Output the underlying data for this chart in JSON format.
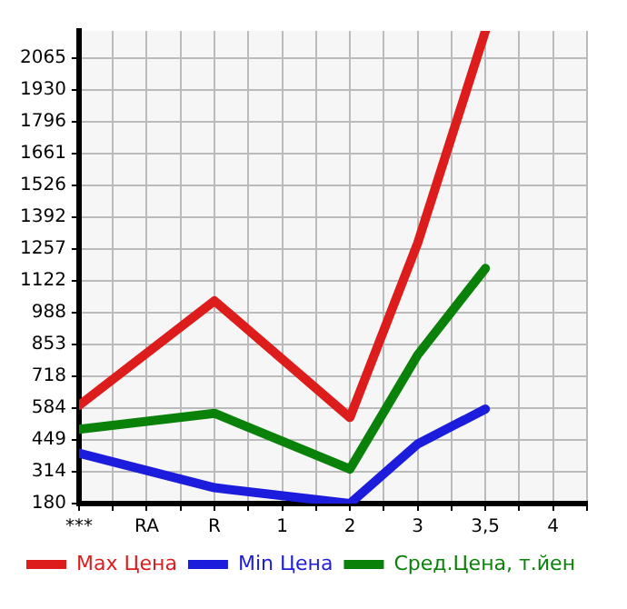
{
  "chart_data": {
    "type": "line",
    "categories": [
      "***",
      "RA",
      "R",
      "1",
      "2",
      "3",
      "3,5",
      "4"
    ],
    "series": [
      {
        "name": "Max Цена",
        "color": "#dd1c1c",
        "values": [
          595,
          null,
          1038,
          null,
          544,
          1282,
          2180,
          null
        ]
      },
      {
        "name": "Min Цена",
        "color": "#1c1cdd",
        "values": [
          393,
          null,
          247,
          null,
          180,
          432,
          580,
          null
        ]
      },
      {
        "name": "Сред.Цена, т.йен",
        "color": "#0a820a",
        "values": [
          494,
          null,
          562,
          null,
          326,
          809,
          1175,
          null
        ]
      }
    ],
    "ylim": [
      180,
      2180
    ],
    "yticks": [
      180,
      314,
      449,
      584,
      718,
      853,
      988,
      1122,
      1257,
      1392,
      1526,
      1661,
      1796,
      1930,
      2065
    ],
    "grid": true,
    "legend": "bottom",
    "marker": "none",
    "line_style": "solid"
  }
}
